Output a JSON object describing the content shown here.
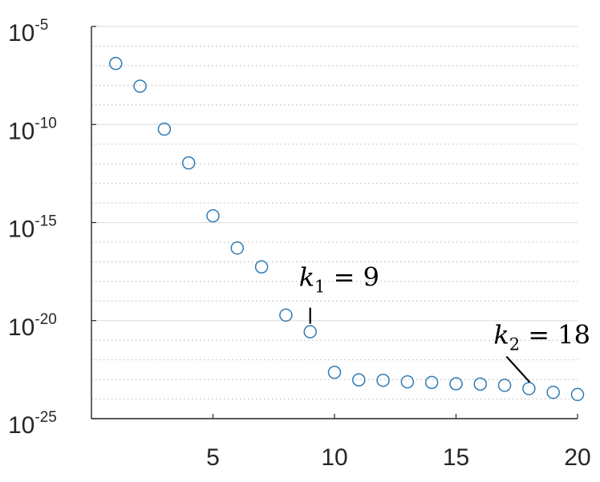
{
  "chart_data": {
    "type": "scatter",
    "title": "",
    "xlabel": "",
    "ylabel": "",
    "x_range": [
      0,
      20
    ],
    "y_scale": "log",
    "y_range_exponent": [
      -25,
      -5
    ],
    "grid": "major solid, minor dotted, horizontal only",
    "x_ticks": [
      {
        "value": 5,
        "label": "5"
      },
      {
        "value": 10,
        "label": "10"
      },
      {
        "value": 15,
        "label": "15"
      },
      {
        "value": 20,
        "label": "20"
      }
    ],
    "y_ticks": [
      {
        "exponent": -5,
        "base": "10",
        "sup": "-5"
      },
      {
        "exponent": -10,
        "base": "10",
        "sup": "-10"
      },
      {
        "exponent": -15,
        "base": "10",
        "sup": "-15"
      },
      {
        "exponent": -20,
        "base": "10",
        "sup": "-20"
      },
      {
        "exponent": -25,
        "base": "10",
        "sup": "-25"
      }
    ],
    "marker": {
      "shape": "open-circle",
      "color": "#2e7bb4"
    },
    "points": [
      {
        "x": 1,
        "y": 1.3e-07
      },
      {
        "x": 2,
        "y": 9e-09
      },
      {
        "x": 3,
        "y": 5.8e-11
      },
      {
        "x": 4,
        "y": 1.1e-12
      },
      {
        "x": 5,
        "y": 2.2e-15
      },
      {
        "x": 6,
        "y": 5e-17
      },
      {
        "x": 7,
        "y": 5.5e-18
      },
      {
        "x": 8,
        "y": 1.9e-20
      },
      {
        "x": 9,
        "y": 2.7e-21
      },
      {
        "x": 10,
        "y": 2.3e-23
      },
      {
        "x": 11,
        "y": 9.5e-24
      },
      {
        "x": 12,
        "y": 9e-24
      },
      {
        "x": 13,
        "y": 7.5e-24
      },
      {
        "x": 14,
        "y": 7e-24
      },
      {
        "x": 15,
        "y": 6e-24
      },
      {
        "x": 16,
        "y": 5.8e-24
      },
      {
        "x": 17,
        "y": 5e-24
      },
      {
        "x": 18,
        "y": 3.4e-24
      },
      {
        "x": 19,
        "y": 2.2e-24
      },
      {
        "x": 20,
        "y": 1.7e-24
      }
    ],
    "annotations": [
      {
        "var": "k",
        "sub": "1",
        "rest": " = 9",
        "point_x": 9
      },
      {
        "var": "k",
        "sub": "2",
        "rest": " = 18",
        "point_x": 18
      }
    ]
  }
}
